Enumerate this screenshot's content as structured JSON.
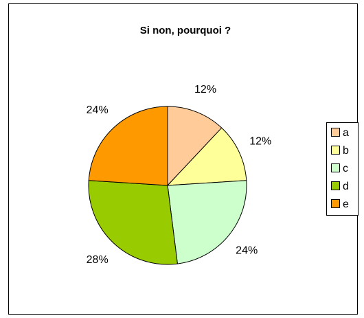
{
  "chart_data": {
    "type": "pie",
    "title": "Si non, pourquoi ?",
    "categories": [
      "a",
      "b",
      "c",
      "d",
      "e"
    ],
    "values": [
      12,
      12,
      24,
      28,
      24
    ],
    "value_labels": [
      "12%",
      "12%",
      "24%",
      "28%",
      "24%"
    ],
    "colors": [
      "#FFCC99",
      "#FFFF99",
      "#CCFFCC",
      "#99CC00",
      "#FF9900"
    ],
    "legend": "right"
  }
}
